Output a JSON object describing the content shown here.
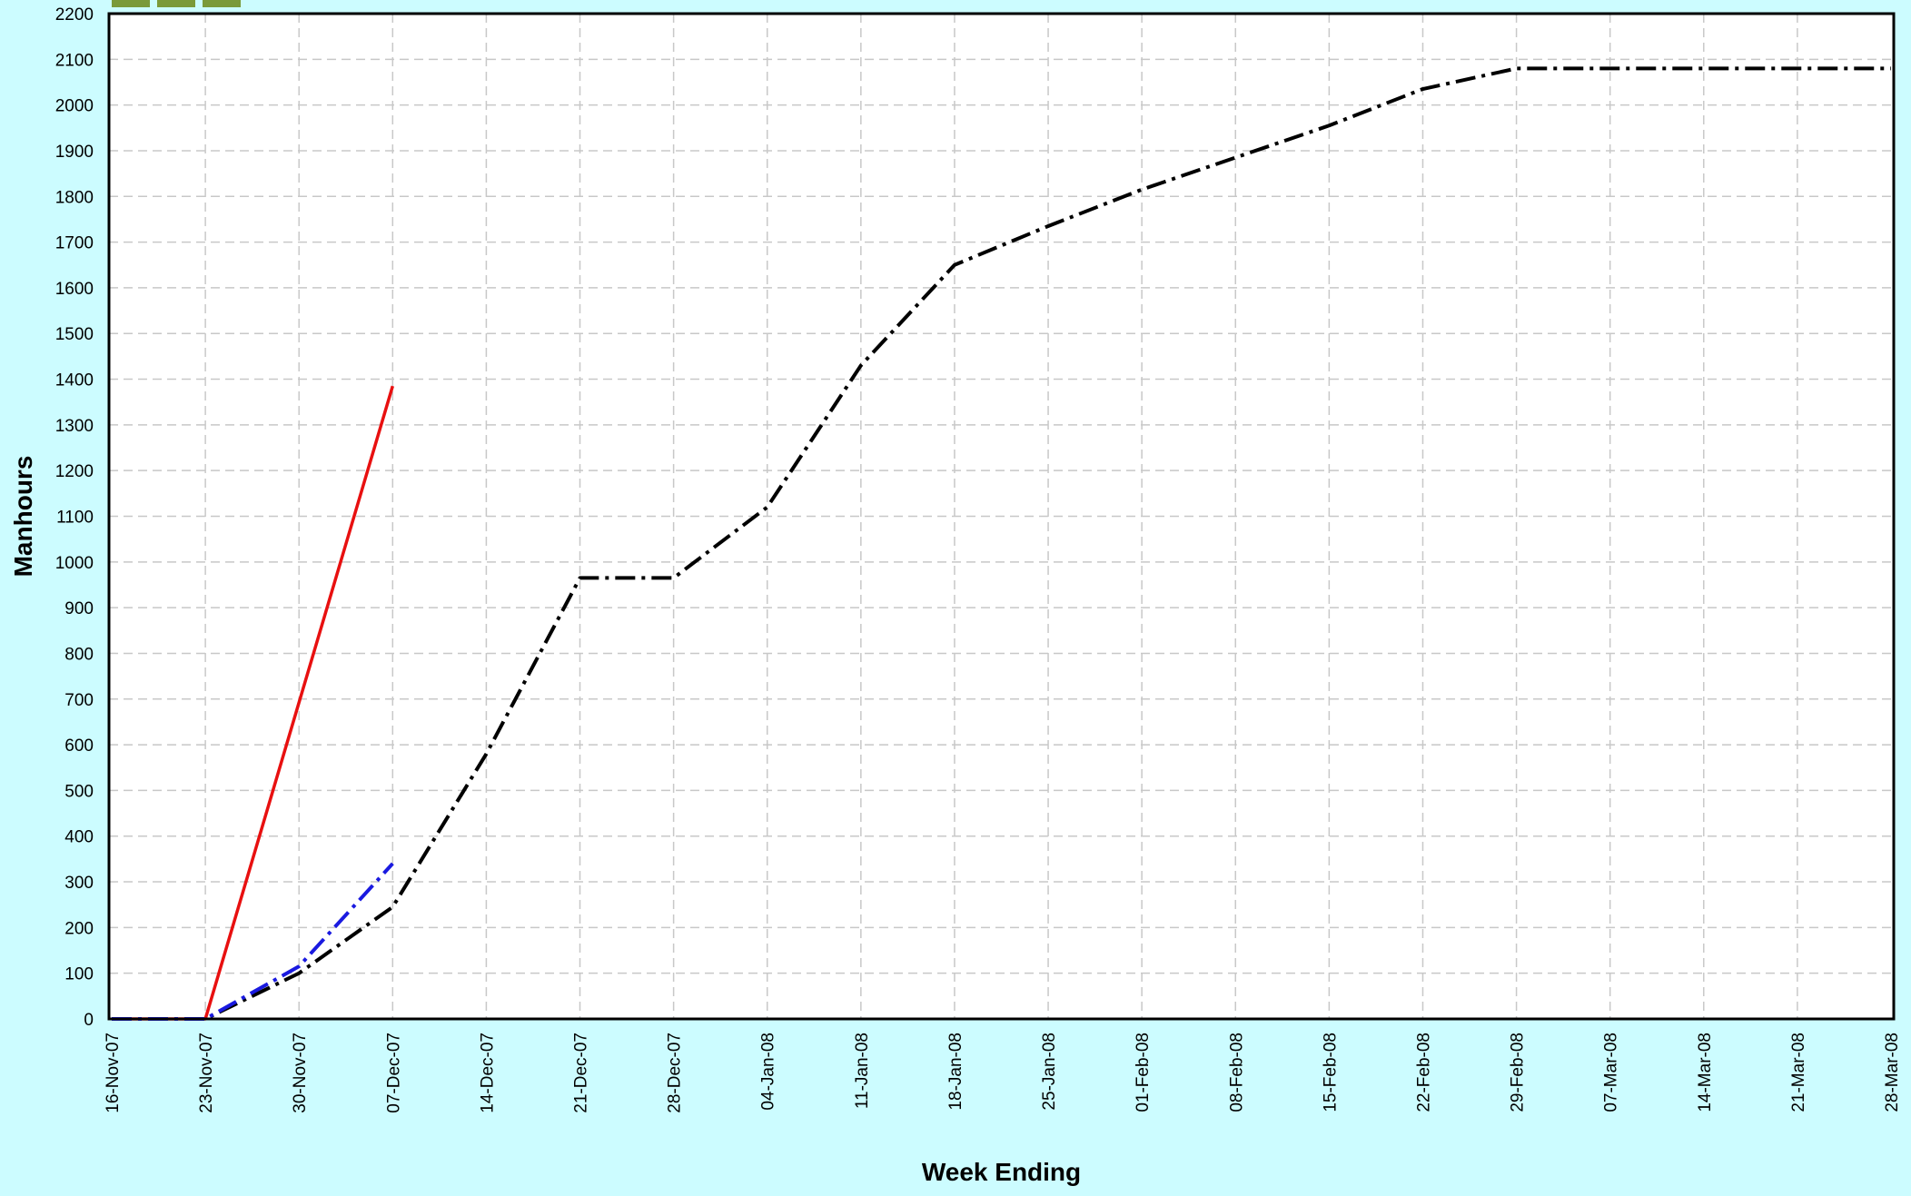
{
  "chart_data": {
    "type": "line",
    "title": "",
    "xlabel": "Week Ending",
    "ylabel": "Manhours",
    "ylim": [
      0,
      2200
    ],
    "y_tick_step": 100,
    "grid": true,
    "legend_swatch_color": "#7a9a3a",
    "legend_swatch_count": 3,
    "categories": [
      "16-Nov-07",
      "23-Nov-07",
      "30-Nov-07",
      "07-Dec-07",
      "14-Dec-07",
      "21-Dec-07",
      "28-Dec-07",
      "04-Jan-08",
      "11-Jan-08",
      "18-Jan-08",
      "25-Jan-08",
      "01-Feb-08",
      "08-Feb-08",
      "15-Feb-08",
      "22-Feb-08",
      "29-Feb-08",
      "07-Mar-08",
      "14-Mar-08",
      "21-Mar-08",
      "28-Mar-08"
    ],
    "series": [
      {
        "color": "#000000",
        "dash": "dashdot",
        "x": [
          "16-Nov-07",
          "23-Nov-07",
          "30-Nov-07",
          "07-Dec-07",
          "14-Dec-07",
          "21-Dec-07",
          "28-Dec-07",
          "04-Jan-08",
          "11-Jan-08",
          "18-Jan-08",
          "25-Jan-08",
          "01-Feb-08",
          "08-Feb-08",
          "15-Feb-08",
          "22-Feb-08",
          "29-Feb-08",
          "07-Mar-08",
          "14-Mar-08",
          "21-Mar-08",
          "28-Mar-08"
        ],
        "values": [
          0,
          0,
          100,
          245,
          580,
          965,
          965,
          1120,
          1430,
          1650,
          1735,
          1815,
          1885,
          1955,
          2035,
          2080,
          2080,
          2080,
          2080,
          2080
        ]
      },
      {
        "color": "#e81010",
        "dash": "solid",
        "x": [
          "16-Nov-07",
          "23-Nov-07",
          "07-Dec-07"
        ],
        "values": [
          0,
          0,
          1385
        ]
      },
      {
        "color": "#1a1ae0",
        "dash": "dashdot",
        "x": [
          "16-Nov-07",
          "23-Nov-07",
          "30-Nov-07",
          "07-Dec-07"
        ],
        "values": [
          0,
          0,
          115,
          340
        ]
      }
    ]
  }
}
